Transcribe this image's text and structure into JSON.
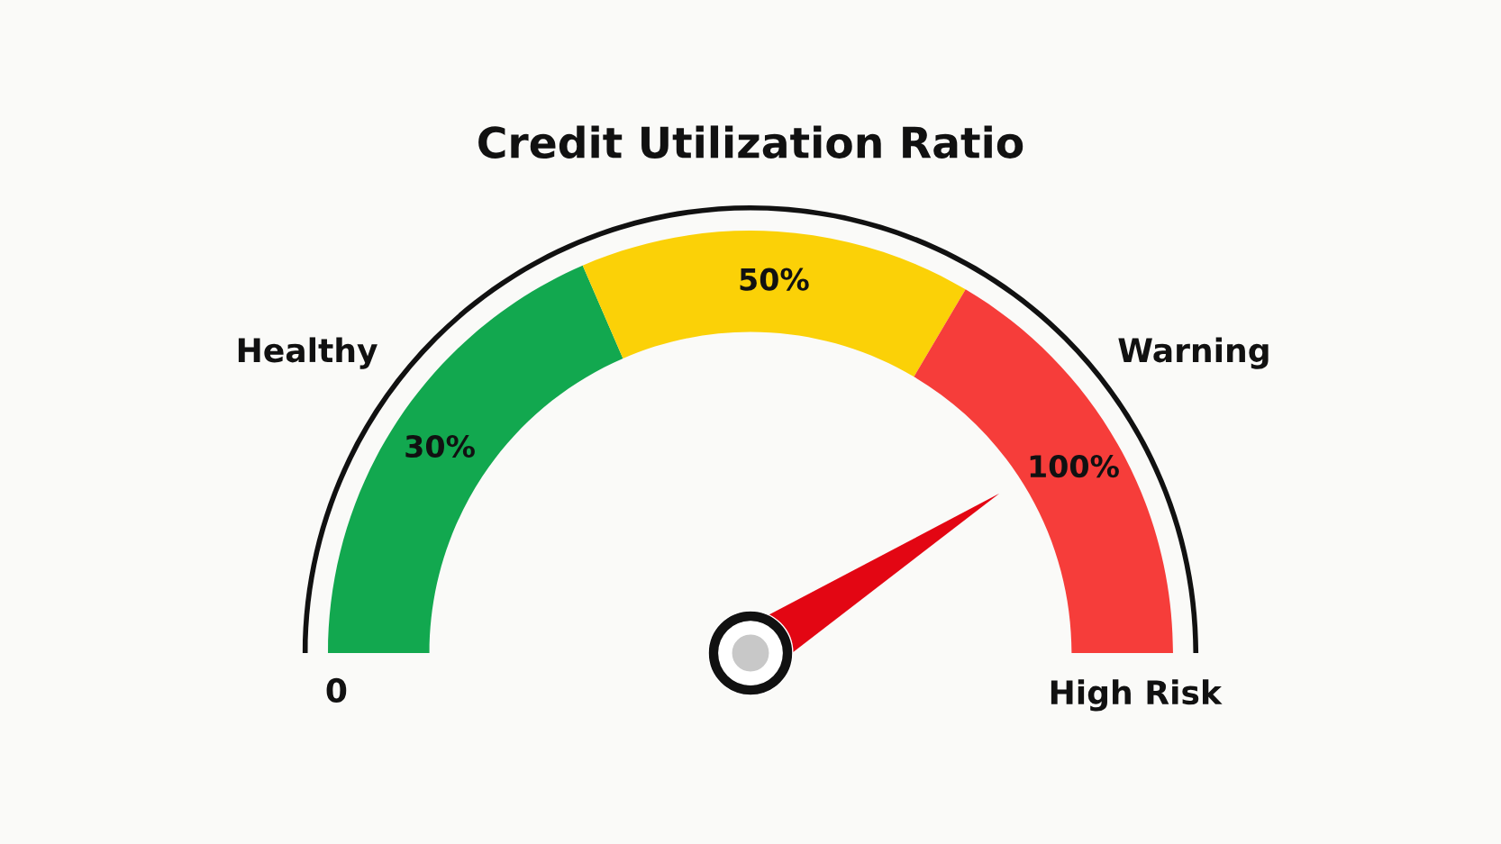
{
  "chart_data": {
    "type": "donut",
    "title": "Credit Utilization Ratio",
    "categories": [
      "30%",
      "50%",
      "100%"
    ],
    "values": [
      37,
      30,
      33
    ],
    "colors": [
      "#12a84f",
      "#fbd107",
      "#f63d3a"
    ],
    "needle": "100%",
    "annotations": [
      "Healthy",
      "Warning",
      "0",
      "High Risk"
    ]
  }
}
